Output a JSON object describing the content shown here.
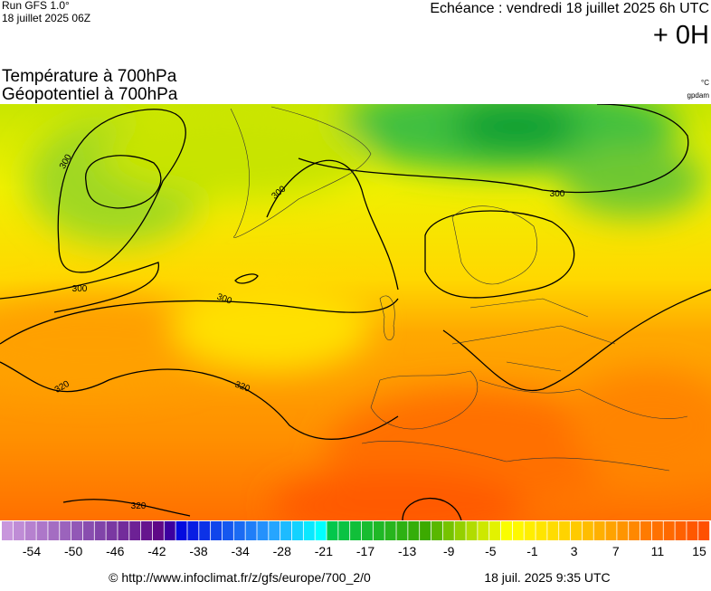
{
  "header": {
    "run": "Run GFS 1.0°",
    "run_date": "18 juillet 2025 06Z",
    "echeance": "Echéance : vendredi 18 juillet 2025 6h UTC",
    "offset": "+ 0H",
    "title_temp": "Température à 700hPa",
    "title_geo": "Géopotentiel à 700hPa",
    "unit_temp": "°C",
    "unit_geo": "gpdam"
  },
  "map": {
    "contour_labels": [
      "300",
      "300",
      "300",
      "300",
      "300",
      "320",
      "320",
      "320"
    ]
  },
  "colorbar": {
    "labels": [
      "-54",
      "-50",
      "-46",
      "-42",
      "-38",
      "-34",
      "-28",
      "-21",
      "-17",
      "-13",
      "-9",
      "-5",
      "-1",
      "3",
      "7",
      "11",
      "15"
    ]
  },
  "footer": {
    "url": "© http://www.infoclimat.fr/z/gfs/europe/700_2/0",
    "generated": "18 juil. 2025  9:35 UTC"
  }
}
